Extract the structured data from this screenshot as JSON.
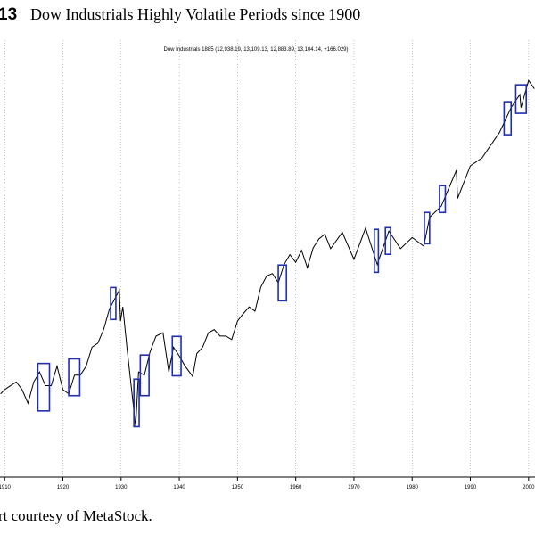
{
  "chart_data": {
    "type": "line",
    "figure_number": "13",
    "title": "Dow Industrials Highly Volatile Periods since 1900",
    "subtitle": "Dow Industrials 1885 (12,938.19, 13,109.13, 12,883.89, 13,104.14, +166.029)",
    "source": "rt courtesy of MetaStock.",
    "log_scale": true,
    "grid": true,
    "xlim": [
      1909.2,
      2001.1
    ],
    "xticks": [
      1910,
      1920,
      1930,
      1940,
      1950,
      1960,
      1970,
      1980,
      1990,
      2000
    ],
    "ylim": [
      18,
      22600
    ],
    "series": [
      {
        "name": "Dow Industrials",
        "color": "#000000",
        "x": [
          1909.3,
          1910,
          1911,
          1912,
          1913,
          1914,
          1915,
          1916,
          1917,
          1918,
          1919,
          1920,
          1921,
          1922,
          1923,
          1924,
          1925,
          1926,
          1927,
          1928,
          1929.7,
          1929.9,
          1930.3,
          1931,
          1932.5,
          1933,
          1934,
          1935,
          1936,
          1937.2,
          1938.2,
          1939,
          1940,
          1941,
          1942.3,
          1943,
          1944,
          1945,
          1946,
          1947,
          1948,
          1949,
          1950,
          1951,
          1952,
          1953,
          1954,
          1955,
          1956,
          1957,
          1958,
          1959,
          1960,
          1961,
          1962,
          1963,
          1964,
          1965,
          1966,
          1968,
          1970,
          1972,
          1974,
          1976,
          1978,
          1980,
          1982,
          1983,
          1985,
          1987.6,
          1987.8,
          1990,
          1992,
          1995,
          1997,
          1998.5,
          1998.7,
          2000,
          2001
        ],
        "values": [
          70,
          75,
          80,
          85,
          75,
          60,
          85,
          100,
          80,
          80,
          110,
          75,
          70,
          95,
          95,
          110,
          150,
          160,
          200,
          280,
          381,
          230,
          290,
          150,
          41,
          100,
          95,
          140,
          180,
          190,
          100,
          150,
          130,
          110,
          93,
          135,
          150,
          190,
          200,
          180,
          180,
          170,
          230,
          260,
          290,
          270,
          400,
          480,
          500,
          430,
          580,
          680,
          600,
          730,
          550,
          760,
          880,
          950,
          750,
          980,
          630,
          1050,
          580,
          1000,
          750,
          900,
          780,
          1250,
          1500,
          2700,
          1700,
          2900,
          3300,
          5000,
          7500,
          9300,
          7500,
          11700,
          10200
        ]
      }
    ],
    "highlight_color": "#1f2fb0",
    "highlights": [
      {
        "start": 1915.7,
        "end": 1917.7,
        "low": 53,
        "high": 115
      },
      {
        "start": 1921,
        "end": 1922.9,
        "low": 68,
        "high": 124
      },
      {
        "start": 1928.2,
        "end": 1929.1,
        "low": 236,
        "high": 398
      },
      {
        "start": 1932.2,
        "end": 1933.1,
        "low": 41,
        "high": 89
      },
      {
        "start": 1933.3,
        "end": 1934.8,
        "low": 68,
        "high": 132
      },
      {
        "start": 1938.8,
        "end": 1940.3,
        "low": 94,
        "high": 179
      },
      {
        "start": 1957,
        "end": 1958.4,
        "low": 320,
        "high": 574
      },
      {
        "start": 1973.5,
        "end": 1974.2,
        "low": 510,
        "high": 1028
      },
      {
        "start": 1975.4,
        "end": 1976.3,
        "low": 684,
        "high": 1057
      },
      {
        "start": 1982.1,
        "end": 1983,
        "low": 813,
        "high": 1355
      },
      {
        "start": 1984.7,
        "end": 1985.7,
        "low": 1355,
        "high": 2099
      },
      {
        "start": 1995.8,
        "end": 1997,
        "low": 4820,
        "high": 8260
      },
      {
        "start": 1997.8,
        "end": 1999.6,
        "low": 6840,
        "high": 10890
      }
    ]
  }
}
